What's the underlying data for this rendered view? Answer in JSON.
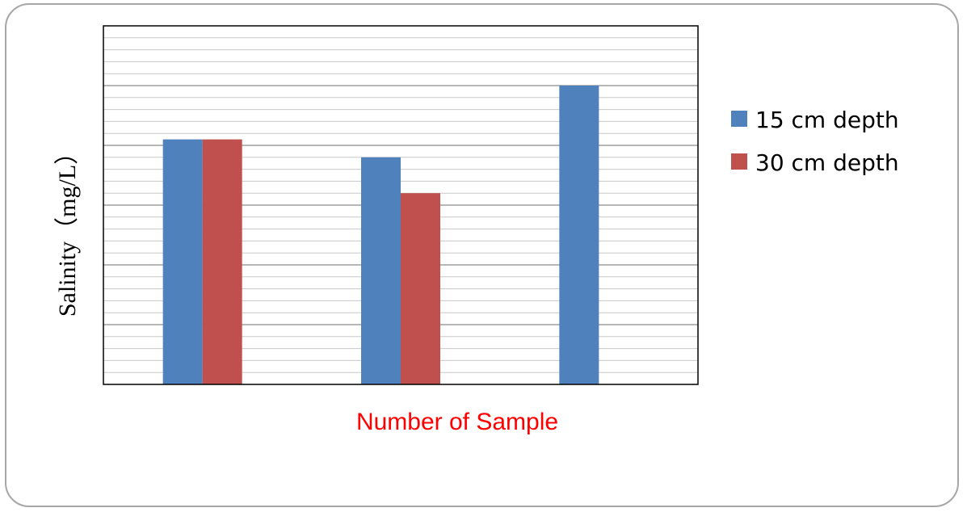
{
  "chart_data": {
    "type": "bar",
    "categories": [
      "",
      "",
      ""
    ],
    "series": [
      {
        "name": "15 cm depth",
        "values": [
          20.5,
          19.0,
          25.0
        ]
      },
      {
        "name": "30 cm depth",
        "values": [
          20.5,
          16.0,
          0
        ]
      }
    ],
    "xlabel": "Number of Sample",
    "ylabel": "Salinity（mg/L）",
    "ylim": [
      0,
      30
    ],
    "major_gridlines_every": 5,
    "minor_gridlines_every": 1,
    "legend_position": "right",
    "colors": {
      "series_15cm": "#4f81bd",
      "series_30cm": "#c0504d",
      "xlabel": "#ff0000",
      "major_grid": "#8c8c8c",
      "minor_grid": "#c8c8c8",
      "plot_border": "#000000"
    }
  }
}
